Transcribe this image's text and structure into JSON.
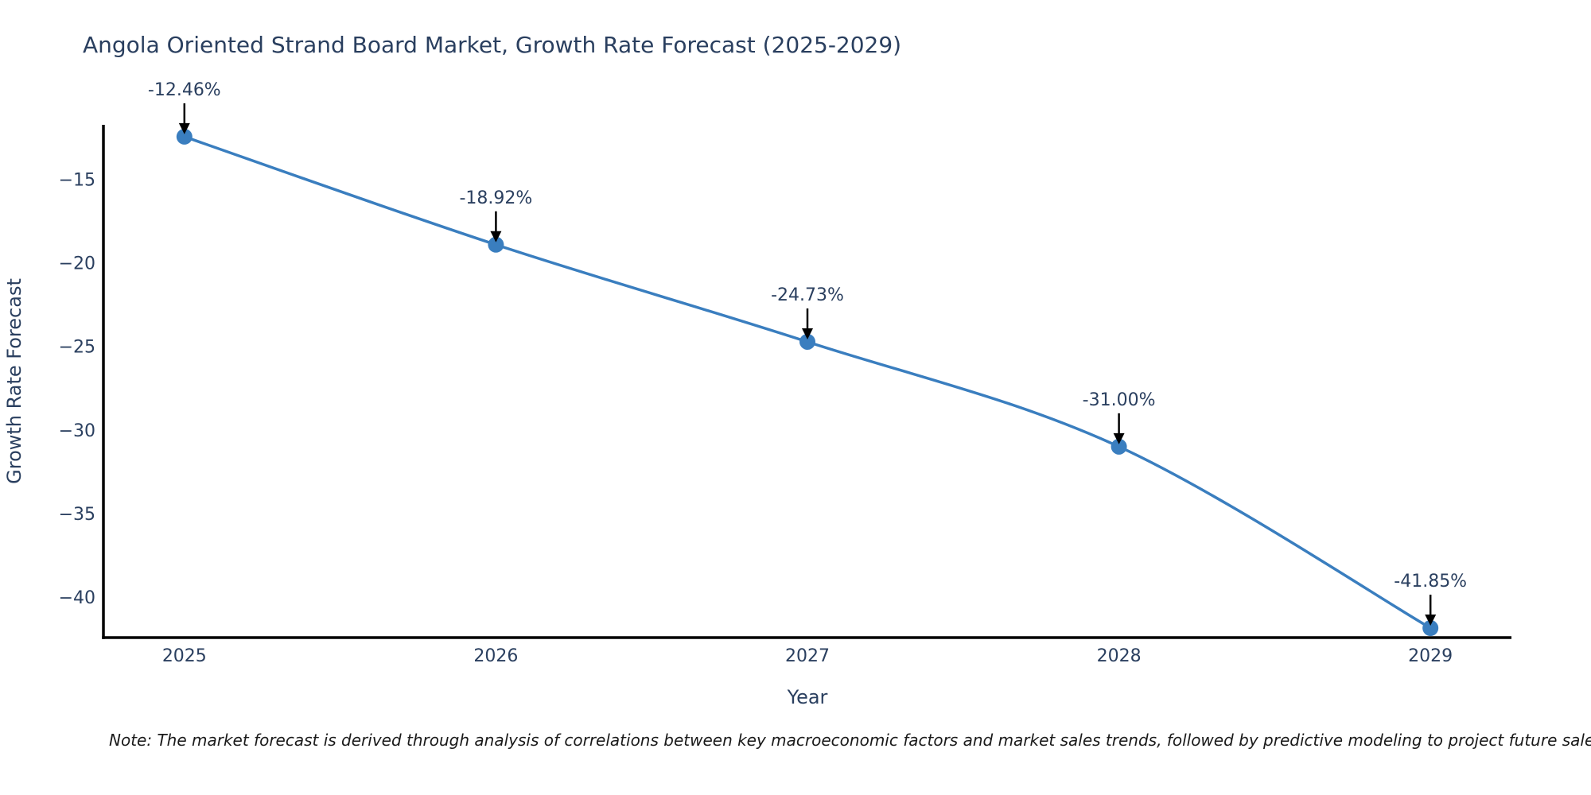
{
  "title": {
    "text": "Angola Oriented Strand Board Market, Growth Rate Forecast (2025-2029)"
  },
  "note": {
    "text": "Note: The market forecast is derived through analysis of correlations between key macroeconomic factors and market sales trends, followed by predictive modeling to project future sales"
  },
  "chart_data": {
    "type": "line",
    "title": "Angola Oriented Strand Board Market, Growth Rate Forecast (2025-2029)",
    "x": [
      2025,
      2026,
      2027,
      2028,
      2029
    ],
    "values": [
      -12.46,
      -18.92,
      -24.73,
      -31.0,
      -41.85
    ],
    "point_labels": [
      "-12.46%",
      "-18.92%",
      "-24.73%",
      "-31.00%",
      "-41.85%"
    ],
    "xlabel": "Year",
    "ylabel": "Growth Rate Forecast",
    "x_ticks": [
      2025,
      2026,
      2027,
      2028,
      2029
    ],
    "y_ticks": [
      -15,
      -20,
      -25,
      -30,
      -35,
      -40
    ],
    "xlim": [
      2024.74,
      2029.26
    ],
    "ylim": [
      -42.42,
      -11.75
    ],
    "grid": false,
    "legend": "none",
    "line_color": "#3a7ebf",
    "marker_color": "#3a7ebf",
    "axis_color": "#000000",
    "text_color": "#2a3f5f",
    "annotation_arrow_color": "#000000"
  }
}
